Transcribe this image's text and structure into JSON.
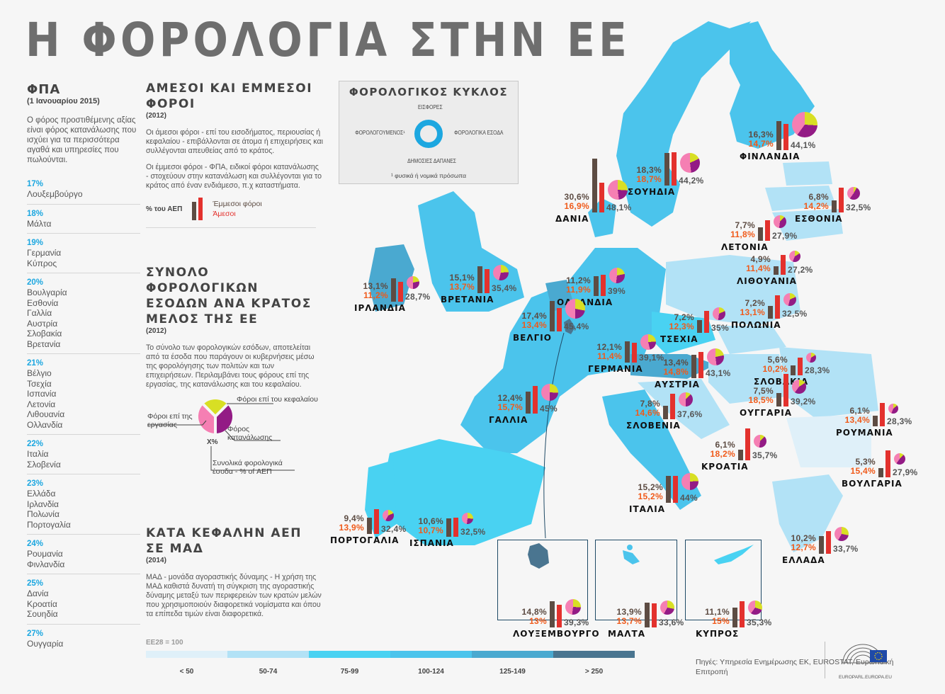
{
  "title": "Η ΦΟΡΟΛΟΓΙΑ ΣΤΗΝ ΕΕ",
  "vat": {
    "heading": "ΦΠΑ",
    "subheading": "(1 Ιανουαρίου 2015)",
    "description": "Ο φόρος προστιθέμενης αξίας είναι φόρος κατανάλωσης που ισχύει για τα περισσότερα αγαθά και υπηρεσίες που πωλούνται.",
    "groups": [
      {
        "rate": "17%",
        "countries": [
          "Λουξεμβούργο"
        ]
      },
      {
        "rate": "18%",
        "countries": [
          "Μάλτα"
        ]
      },
      {
        "rate": "19%",
        "countries": [
          "Γερμανία",
          "Κύπρος"
        ]
      },
      {
        "rate": "20%",
        "countries": [
          "Βουλγαρία",
          "Εσθονία",
          "Γαλλία",
          "Αυστρία",
          "Σλοβακία",
          "Βρετανία"
        ]
      },
      {
        "rate": "21%",
        "countries": [
          "Βέλγιο",
          "Τσεχία",
          "Ισπανία",
          "Λετονία",
          "Λιθουανία",
          "Ολλανδία"
        ]
      },
      {
        "rate": "22%",
        "countries": [
          "Ιταλία",
          "Σλοβενία"
        ]
      },
      {
        "rate": "23%",
        "countries": [
          "Ελλάδα",
          "Ιρλανδία",
          "Πολωνία",
          "Πορτογαλία"
        ]
      },
      {
        "rate": "24%",
        "countries": [
          "Ρουμανία",
          "Φινλανδία"
        ]
      },
      {
        "rate": "25%",
        "countries": [
          "Δανία",
          "Κροατία",
          "Σουηδία"
        ]
      },
      {
        "rate": "27%",
        "countries": [
          "Ουγγαρία"
        ]
      }
    ]
  },
  "direct_indirect": {
    "heading": "ΑΜΕΣΟΙ ΚΑΙ ΕΜΜΕΣΟΙ ΦΟΡΟΙ",
    "year": "(2012)",
    "p1": "Οι άμεσοι φόροι - επί του εισοδήματος, περιουσίας ή κεφαλαίου - επιβάλλονται σε άτομα ή επιχειρήσεις και συλλέγονται απευθείας από το κράτος.",
    "p2": "Οι έμμεσοι φόροι - ΦΠΑ, ειδικοί φόροι κατανάλωσης - στοχεύουν στην κατανάλωση και συλλέγονται για το κράτος από έναν ενδιάμεσο, π.χ καταστήματα.",
    "legend_label": "% του ΑΕΠ",
    "legend_indirect": "Έμμεσοι φόροι",
    "legend_direct": "Άμεσοι"
  },
  "total_revenue": {
    "heading": "ΣΥΝΟΛΟ ΦΟΡΟΛΟΓΙΚΩΝ ΕΣΟΔΩΝ ΑΝΑ ΚΡΑΤΟΣ ΜΕΛΟΣ ΤΗΣ ΕΕ",
    "year": "(2012)",
    "description": "Το σύνολο των φορολογικών εσόδων, αποτελείται από τα έσοδα που παράγουν οι κυβερνήσεις μέσω της φορολόγησης των πολιτών και των επιχειρήσεων. Περιλαμβάνει τους φόρους επί της εργασίας, της κατανάλωσης και του κεφαλαίου.",
    "pie_capital": "Φόροι επί του κεφαλαίου",
    "pie_labour": "Φόροι επί της εργασίας",
    "pie_consumption": "Φόρος κατανάλωσης",
    "pie_center": "X%",
    "pie_total": "Συνολικά φορολογικά έσοδα - % of ΑΕΠ"
  },
  "gdp": {
    "heading": "ΚΑΤΑ ΚΕΦΑΛΗΝ ΑΕΠ ΣΕ ΜΑΔ",
    "year": "(2014)",
    "description": "ΜΑΔ - μονάδα αγοραστικής δύναμης - Η χρήση της ΜΑΔ καθιστά δυνατή τη σύγκριση της αγοραστικής δύναμης μεταξύ των περιφερειών των κρατών μελών που χρησιμοποιούν διαφορετικά νομίσματα και όπου τα επίπεδα τιμών είναι διαφορετικά.",
    "scale_note": "ΕΕ28 = 100",
    "scale": [
      {
        "label": "< 50",
        "color": "#dff0f9"
      },
      {
        "label": "50-74",
        "color": "#b2e2f6"
      },
      {
        "label": "75-99",
        "color": "#49d2f2"
      },
      {
        "label": "100-124",
        "color": "#4bc4ec"
      },
      {
        "label": "125-149",
        "color": "#4aa9d0"
      },
      {
        "label": "> 250",
        "color": "#4a7590"
      }
    ]
  },
  "cycle": {
    "heading": "ΦΟΡΟΛΟΓΙΚΟΣ ΚΥΚΛΟΣ",
    "top": "ΕΙΣΦΟΡΕΣ",
    "left": "ΦΟΡΟΛΟΓΟΥΜΕΝΟΣ¹",
    "right": "ΦΟΡΟΛΟΓΙΚΑ ΕΣΟΔΑ",
    "bottom": "ΔΗΜΟΣΙΕΣ ΔΑΠΑΝΕΣ",
    "footnote": "¹ φυσικά ή νομικά πρόσωπα"
  },
  "colors": {
    "indirect": "#5d4c43",
    "direct": "#e3312d",
    "direct_text": "#f05a1a",
    "pie_labour": "#f57fb3",
    "pie_consumption": "#931b85",
    "pie_capital": "#d8df24",
    "accent": "#1ca7e0"
  },
  "countries": [
    {
      "id": "finland",
      "name": "ΦΙΝΛΑΝΔΙΑ",
      "indirect": "16,3%",
      "direct": "14,7%",
      "total": "44,1%"
    },
    {
      "id": "sweden",
      "name": "ΣΟΥΗΔΙΑ",
      "indirect": "18,3%",
      "direct": "18,7%",
      "total": "44,2%"
    },
    {
      "id": "estonia",
      "name": "ΕΣΘΟΝΙΑ",
      "indirect": "6,8%",
      "direct": "14,2%",
      "total": "32,5%"
    },
    {
      "id": "latvia",
      "name": "ΛΕΤΟΝΙΑ",
      "indirect": "7,7%",
      "direct": "11,8%",
      "total": "27,9%"
    },
    {
      "id": "lithuania",
      "name": "ΛΙΘΟΥΑΝΙΑ",
      "indirect": "4,9%",
      "direct": "11,4%",
      "total": "27,2%"
    },
    {
      "id": "denmark",
      "name": "ΔΑΝΙΑ",
      "indirect": "30,6%",
      "direct": "16,9%",
      "total": "48,1%"
    },
    {
      "id": "ireland",
      "name": "ΙΡΛΑΝΔΙΑ",
      "indirect": "13,1%",
      "direct": "11,2%",
      "total": "28,7%"
    },
    {
      "id": "uk",
      "name": "ΒΡΕΤΑΝΙΑ",
      "indirect": "15,1%",
      "direct": "13,7%",
      "total": "35,4%"
    },
    {
      "id": "netherlands",
      "name": "ΟΛΛΑΝΔΙΑ",
      "indirect": "11,2%",
      "direct": "11,9%",
      "total": "39%"
    },
    {
      "id": "belgium",
      "name": "ΒΕΛΓΙΟ",
      "indirect": "17,4%",
      "direct": "13,4%",
      "total": "45,4%"
    },
    {
      "id": "germany",
      "name": "ΓΕΡΜΑΝΙΑ",
      "indirect": "12,1%",
      "direct": "11,4%",
      "total": "39,1%"
    },
    {
      "id": "poland",
      "name": "ΠΟΛΩΝΙΑ",
      "indirect": "7,2%",
      "direct": "13,1%",
      "total": "32,5%"
    },
    {
      "id": "czechia",
      "name": "ΤΣΕΧΙΑ",
      "indirect": "7,2%",
      "direct": "12,3%",
      "total": "35%"
    },
    {
      "id": "slovakia",
      "name": "ΣΛΟΒΑΚΙΑ",
      "indirect": "5,6%",
      "direct": "10,2%",
      "total": "28,3%"
    },
    {
      "id": "austria",
      "name": "ΑΥΣΤΡΙΑ",
      "indirect": "13,4%",
      "direct": "14,8%",
      "total": "43,1%"
    },
    {
      "id": "france",
      "name": "ΓΑΛΛΙΑ",
      "indirect": "12,4%",
      "direct": "15,7%",
      "total": "45%"
    },
    {
      "id": "slovenia",
      "name": "ΣΛΟΒΕΝΙΑ",
      "indirect": "7,8%",
      "direct": "14,6%",
      "total": "37,6%"
    },
    {
      "id": "hungary",
      "name": "ΟΥΓΓΑΡΙΑ",
      "indirect": "7,5%",
      "direct": "18,5%",
      "total": "39,2%"
    },
    {
      "id": "romania",
      "name": "ΡΟΥΜΑΝΙΑ",
      "indirect": "6,1%",
      "direct": "13,4%",
      "total": "28,3%"
    },
    {
      "id": "croatia",
      "name": "ΚΡΟΑΤΙΑ",
      "indirect": "6,1%",
      "direct": "18,2%",
      "total": "35,7%"
    },
    {
      "id": "bulgaria",
      "name": "ΒΟΥΛΓΑΡΙΑ",
      "indirect": "5,3%",
      "direct": "15,4%",
      "total": "27,9%"
    },
    {
      "id": "italy",
      "name": "ΙΤΑΛΙΑ",
      "indirect": "15,2%",
      "direct": "15,2%",
      "total": "44%"
    },
    {
      "id": "portugal",
      "name": "ΠΟΡΤΟΓΑΛΙΑ",
      "indirect": "9,4%",
      "direct": "13,9%",
      "total": "32,4%"
    },
    {
      "id": "spain",
      "name": "ΙΣΠΑΝΙΑ",
      "indirect": "10,6%",
      "direct": "10,7%",
      "total": "32,5%"
    },
    {
      "id": "greece",
      "name": "ΕΛΛΑΔΑ",
      "indirect": "10,2%",
      "direct": "12,7%",
      "total": "33,7%"
    },
    {
      "id": "luxembourg",
      "name": "ΛΟΥΞΕΜΒΟΥΡΓΟ",
      "indirect": "14,8%",
      "direct": "13%",
      "total": "39,3%"
    },
    {
      "id": "malta",
      "name": "ΜΑΛΤΑ",
      "indirect": "13,9%",
      "direct": "13,7%",
      "total": "33,6%"
    },
    {
      "id": "cyprus",
      "name": "ΚΥΠΡΟΣ",
      "indirect": "11,1%",
      "direct": "15%",
      "total": "35,3%"
    }
  ],
  "footer": {
    "source": "Πηγές: Υπηρεσία Ενημέρωσης ΕΚ, EUROSTAT, Ευρωπαϊκή Επιτροπή",
    "logo_url_text": "EUROPARL.EUROPA.EU"
  }
}
